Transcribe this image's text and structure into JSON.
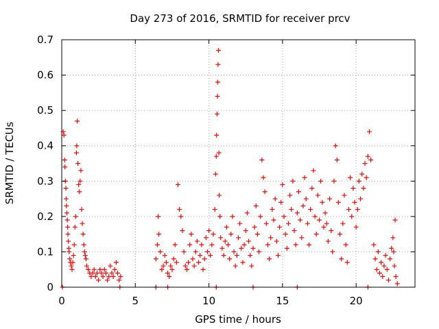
{
  "chart_data": {
    "type": "scatter",
    "title": "Day 273 of 2016, SRMTID for receiver prcv",
    "xlabel": "GPS time / hours",
    "ylabel": "SRMTID / TECUs",
    "xlim": [
      0,
      24
    ],
    "ylim": [
      0,
      0.7
    ],
    "xticks": [
      0,
      5,
      10,
      15,
      20
    ],
    "yticks": [
      0,
      0.1,
      0.2,
      0.3,
      0.4,
      0.5,
      0.6,
      0.7
    ],
    "xtick_labels": [
      "0",
      "5",
      "10",
      "15",
      "20"
    ],
    "ytick_labels": [
      "0",
      "0.1",
      "0.2",
      "0.3",
      "0.4",
      "0.5",
      "0.6",
      "0.7"
    ],
    "grid": true,
    "marker": "+",
    "color": "#ff0000",
    "series": [
      {
        "name": "SRMTID",
        "points": [
          [
            0.1,
            0.44
          ],
          [
            0.15,
            0.43
          ],
          [
            0.2,
            0.36
          ],
          [
            0.22,
            0.34
          ],
          [
            0.25,
            0.3
          ],
          [
            0.28,
            0.28
          ],
          [
            0.3,
            0.25
          ],
          [
            0.32,
            0.23
          ],
          [
            0.35,
            0.21
          ],
          [
            0.38,
            0.19
          ],
          [
            0.4,
            0.17
          ],
          [
            0.42,
            0.15
          ],
          [
            0.45,
            0.13
          ],
          [
            0.48,
            0.11
          ],
          [
            0.5,
            0.1
          ],
          [
            0.55,
            0.08
          ],
          [
            0.6,
            0.07
          ],
          [
            0.65,
            0.06
          ],
          [
            0.7,
            0.05
          ],
          [
            0.75,
            0.07
          ],
          [
            0.8,
            0.09
          ],
          [
            0.85,
            0.12
          ],
          [
            0.9,
            0.17
          ],
          [
            0.95,
            0.2
          ],
          [
            1.0,
            0.38
          ],
          [
            1.02,
            0.4
          ],
          [
            1.05,
            0.47
          ],
          [
            1.1,
            0.35
          ],
          [
            1.15,
            0.29
          ],
          [
            1.2,
            0.27
          ],
          [
            1.25,
            0.3
          ],
          [
            1.3,
            0.33
          ],
          [
            1.35,
            0.22
          ],
          [
            1.4,
            0.18
          ],
          [
            1.45,
            0.15
          ],
          [
            1.5,
            0.12
          ],
          [
            1.55,
            0.1
          ],
          [
            1.6,
            0.09
          ],
          [
            1.65,
            0.08
          ],
          [
            1.7,
            0.06
          ],
          [
            1.8,
            0.05
          ],
          [
            1.9,
            0.04
          ],
          [
            2.0,
            0.03
          ],
          [
            2.1,
            0.04
          ],
          [
            2.2,
            0.05
          ],
          [
            2.3,
            0.03
          ],
          [
            2.4,
            0.04
          ],
          [
            2.5,
            0.02
          ],
          [
            2.6,
            0.05
          ],
          [
            2.7,
            0.04
          ],
          [
            2.8,
            0.03
          ],
          [
            2.9,
            0.05
          ],
          [
            3.0,
            0.04
          ],
          [
            3.1,
            0.02
          ],
          [
            3.2,
            0.03
          ],
          [
            3.3,
            0.06
          ],
          [
            3.4,
            0.04
          ],
          [
            3.5,
            0.03
          ],
          [
            3.6,
            0.05
          ],
          [
            3.7,
            0.07
          ],
          [
            3.8,
            0.04
          ],
          [
            3.9,
            0.02
          ],
          [
            4.0,
            0.03
          ],
          [
            0.05,
            0.0
          ],
          [
            3.95,
            0.0
          ],
          [
            6.4,
            0.0
          ],
          [
            7.2,
            0.0
          ],
          [
            10.5,
            0.0
          ],
          [
            13.0,
            0.0
          ],
          [
            16.0,
            0.0
          ],
          [
            20.8,
            0.0
          ],
          [
            6.4,
            0.08
          ],
          [
            6.5,
            0.12
          ],
          [
            6.55,
            0.2
          ],
          [
            6.6,
            0.15
          ],
          [
            6.7,
            0.1
          ],
          [
            6.8,
            0.05
          ],
          [
            6.9,
            0.06
          ],
          [
            7.0,
            0.09
          ],
          [
            7.1,
            0.07
          ],
          [
            7.2,
            0.04
          ],
          [
            7.3,
            0.03
          ],
          [
            7.4,
            0.06
          ],
          [
            7.5,
            0.05
          ],
          [
            7.6,
            0.08
          ],
          [
            7.7,
            0.12
          ],
          [
            7.8,
            0.07
          ],
          [
            7.9,
            0.29
          ],
          [
            8.0,
            0.22
          ],
          [
            8.1,
            0.2
          ],
          [
            8.2,
            0.16
          ],
          [
            8.3,
            0.1
          ],
          [
            8.4,
            0.06
          ],
          [
            8.5,
            0.05
          ],
          [
            8.6,
            0.07
          ],
          [
            8.7,
            0.12
          ],
          [
            8.8,
            0.15
          ],
          [
            8.9,
            0.08
          ],
          [
            9.0,
            0.06
          ],
          [
            9.1,
            0.1
          ],
          [
            9.2,
            0.13
          ],
          [
            9.3,
            0.07
          ],
          [
            9.4,
            0.09
          ],
          [
            9.5,
            0.12
          ],
          [
            9.6,
            0.05
          ],
          [
            9.7,
            0.08
          ],
          [
            9.8,
            0.14
          ],
          [
            9.9,
            0.1
          ],
          [
            10.0,
            0.16
          ],
          [
            10.1,
            0.09
          ],
          [
            10.2,
            0.12
          ],
          [
            10.3,
            0.15
          ],
          [
            10.4,
            0.22
          ],
          [
            10.45,
            0.32
          ],
          [
            10.5,
            0.37
          ],
          [
            10.52,
            0.43
          ],
          [
            10.55,
            0.49
          ],
          [
            10.58,
            0.54
          ],
          [
            10.6,
            0.58
          ],
          [
            10.62,
            0.63
          ],
          [
            10.65,
            0.67
          ],
          [
            10.68,
            0.38
          ],
          [
            10.7,
            0.26
          ],
          [
            10.75,
            0.2
          ],
          [
            10.8,
            0.14
          ],
          [
            10.9,
            0.11
          ],
          [
            11.0,
            0.09
          ],
          [
            11.1,
            0.13
          ],
          [
            11.2,
            0.17
          ],
          [
            11.3,
            0.12
          ],
          [
            11.4,
            0.08
          ],
          [
            11.5,
            0.15
          ],
          [
            11.6,
            0.2
          ],
          [
            11.7,
            0.1
          ],
          [
            11.8,
            0.06
          ],
          [
            11.9,
            0.09
          ],
          [
            12.0,
            0.14
          ],
          [
            12.1,
            0.18
          ],
          [
            12.2,
            0.11
          ],
          [
            12.3,
            0.07
          ],
          [
            12.4,
            0.12
          ],
          [
            12.5,
            0.16
          ],
          [
            12.6,
            0.21
          ],
          [
            12.7,
            0.13
          ],
          [
            12.8,
            0.09
          ],
          [
            12.9,
            0.06
          ],
          [
            13.0,
            0.11
          ],
          [
            13.1,
            0.17
          ],
          [
            13.2,
            0.23
          ],
          [
            13.3,
            0.15
          ],
          [
            13.4,
            0.1
          ],
          [
            13.5,
            0.2
          ],
          [
            13.6,
            0.36
          ],
          [
            13.7,
            0.31
          ],
          [
            13.8,
            0.27
          ],
          [
            13.9,
            0.18
          ],
          [
            14.0,
            0.12
          ],
          [
            14.1,
            0.08
          ],
          [
            14.2,
            0.14
          ],
          [
            14.3,
            0.22
          ],
          [
            14.4,
            0.19
          ],
          [
            14.5,
            0.25
          ],
          [
            14.6,
            0.13
          ],
          [
            14.7,
            0.09
          ],
          [
            14.8,
            0.17
          ],
          [
            14.9,
            0.24
          ],
          [
            15.0,
            0.29
          ],
          [
            15.1,
            0.2
          ],
          [
            15.2,
            0.15
          ],
          [
            15.3,
            0.11
          ],
          [
            15.4,
            0.18
          ],
          [
            15.5,
            0.26
          ],
          [
            15.6,
            0.22
          ],
          [
            15.7,
            0.3
          ],
          [
            15.8,
            0.16
          ],
          [
            15.9,
            0.12
          ],
          [
            16.0,
            0.21
          ],
          [
            16.1,
            0.27
          ],
          [
            16.2,
            0.19
          ],
          [
            16.3,
            0.14
          ],
          [
            16.4,
            0.23
          ],
          [
            16.5,
            0.31
          ],
          [
            16.6,
            0.25
          ],
          [
            16.7,
            0.18
          ],
          [
            16.8,
            0.12
          ],
          [
            16.9,
            0.22
          ],
          [
            17.0,
            0.28
          ],
          [
            17.1,
            0.33
          ],
          [
            17.2,
            0.2
          ],
          [
            17.3,
            0.15
          ],
          [
            17.4,
            0.26
          ],
          [
            17.5,
            0.19
          ],
          [
            17.6,
            0.3
          ],
          [
            17.7,
            0.24
          ],
          [
            17.8,
            0.17
          ],
          [
            17.9,
            0.21
          ],
          [
            18.0,
            0.18
          ],
          [
            18.1,
            0.13
          ],
          [
            18.2,
            0.25
          ],
          [
            18.3,
            0.16
          ],
          [
            18.4,
            0.1
          ],
          [
            18.5,
            0.3
          ],
          [
            18.6,
            0.4
          ],
          [
            18.7,
            0.36
          ],
          [
            18.8,
            0.24
          ],
          [
            18.9,
            0.15
          ],
          [
            19.0,
            0.08
          ],
          [
            19.1,
            0.18
          ],
          [
            19.2,
            0.26
          ],
          [
            19.3,
            0.12
          ],
          [
            19.4,
            0.07
          ],
          [
            19.5,
            0.22
          ],
          [
            19.6,
            0.31
          ],
          [
            19.7,
            0.2
          ],
          [
            19.8,
            0.28
          ],
          [
            19.9,
            0.24
          ],
          [
            20.0,
            0.17
          ],
          [
            20.1,
            0.22
          ],
          [
            20.2,
            0.3
          ],
          [
            20.3,
            0.25
          ],
          [
            20.4,
            0.32
          ],
          [
            20.5,
            0.28
          ],
          [
            20.6,
            0.35
          ],
          [
            20.7,
            0.31
          ],
          [
            20.8,
            0.37
          ],
          [
            20.9,
            0.44
          ],
          [
            21.0,
            0.36
          ],
          [
            21.2,
            0.12
          ],
          [
            21.3,
            0.08
          ],
          [
            21.4,
            0.05
          ],
          [
            21.5,
            0.1
          ],
          [
            21.6,
            0.04
          ],
          [
            21.7,
            0.07
          ],
          [
            21.8,
            0.03
          ],
          [
            21.9,
            0.06
          ],
          [
            22.0,
            0.09
          ],
          [
            22.1,
            0.05
          ],
          [
            22.2,
            0.02
          ],
          [
            22.3,
            0.08
          ],
          [
            22.4,
            0.11
          ],
          [
            22.5,
            0.14
          ],
          [
            22.55,
            0.1
          ],
          [
            22.6,
            0.06
          ],
          [
            22.65,
            0.19
          ],
          [
            22.7,
            0.03
          ],
          [
            22.8,
            0.01
          ]
        ]
      }
    ]
  }
}
